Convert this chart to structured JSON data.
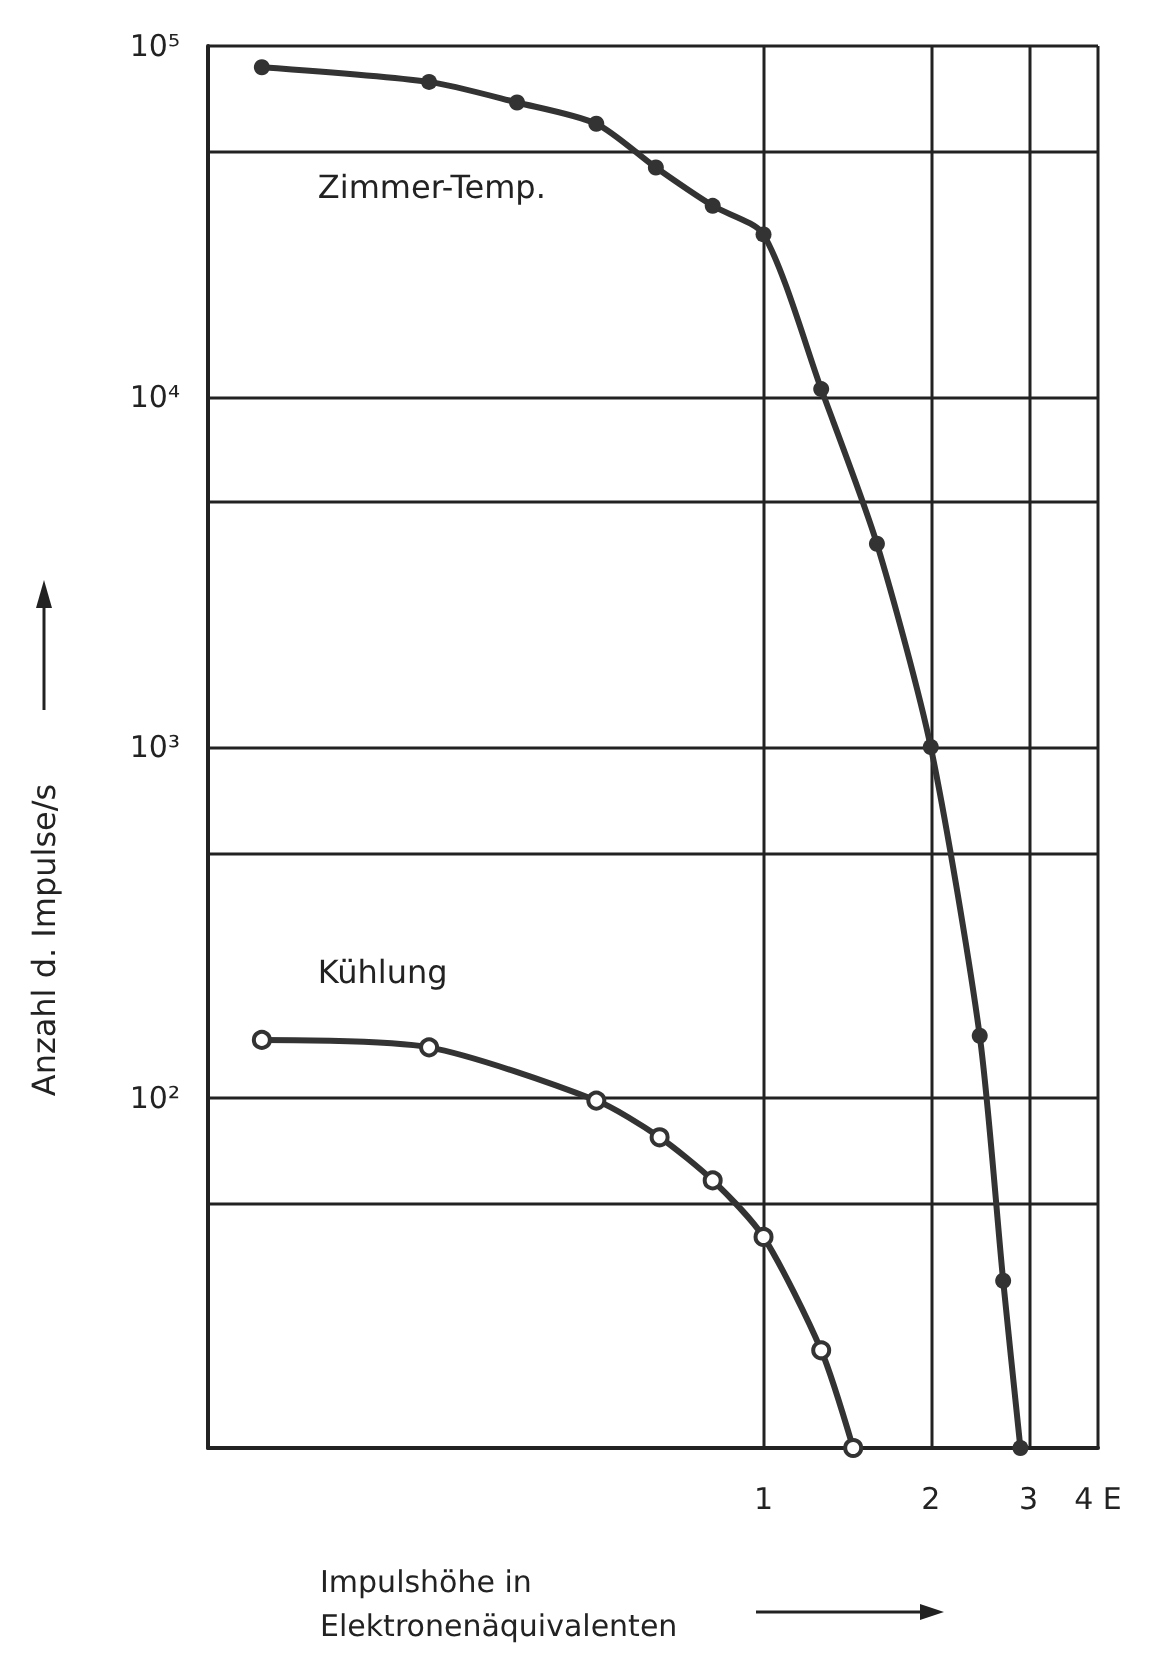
{
  "chart_data": {
    "type": "line",
    "xlabel": "Impulshöhe in Elektronenäquivalenten",
    "ylabel": "Anzahl d. Impulse/s",
    "log": "xy",
    "grid": true,
    "legend": false,
    "marker": "circle",
    "line_style": "solid",
    "xlim": [
      0.1,
      4
    ],
    "xticks": [
      1,
      2,
      3,
      {
        "value": 4,
        "label": "4 E"
      }
    ],
    "ylim": [
      10,
      100000
    ],
    "yticks": [
      {
        "value": 100000,
        "label": "10⁵"
      },
      {
        "value": 50000,
        "label": null
      },
      {
        "value": 10000,
        "label": "10⁴"
      },
      {
        "value": 5000,
        "label": null
      },
      {
        "value": 1000,
        "label": "10³"
      },
      {
        "value": 500,
        "label": null
      },
      {
        "value": 100,
        "label": "10²"
      },
      {
        "value": 50,
        "label": null
      },
      {
        "value": 10,
        "label": null
      }
    ],
    "series": [
      {
        "name": "Zimmer-Temp.",
        "color": "#333333",
        "x": [
          0.125,
          0.25,
          0.36,
          0.5,
          0.64,
          0.81,
          1.0,
          1.27,
          1.6,
          2.0,
          2.45,
          2.7,
          2.9
        ],
        "values": [
          87000,
          79000,
          69000,
          60000,
          45000,
          35000,
          29000,
          10500,
          3800,
          1000,
          150,
          30,
          10
        ]
      },
      {
        "name": "Kühlung",
        "color": "#333333",
        "x": [
          0.125,
          0.25,
          0.5,
          0.65,
          0.81,
          1.0,
          1.27,
          1.45
        ],
        "values": [
          146,
          139,
          98,
          77,
          58,
          40,
          19,
          10
        ]
      }
    ]
  }
}
